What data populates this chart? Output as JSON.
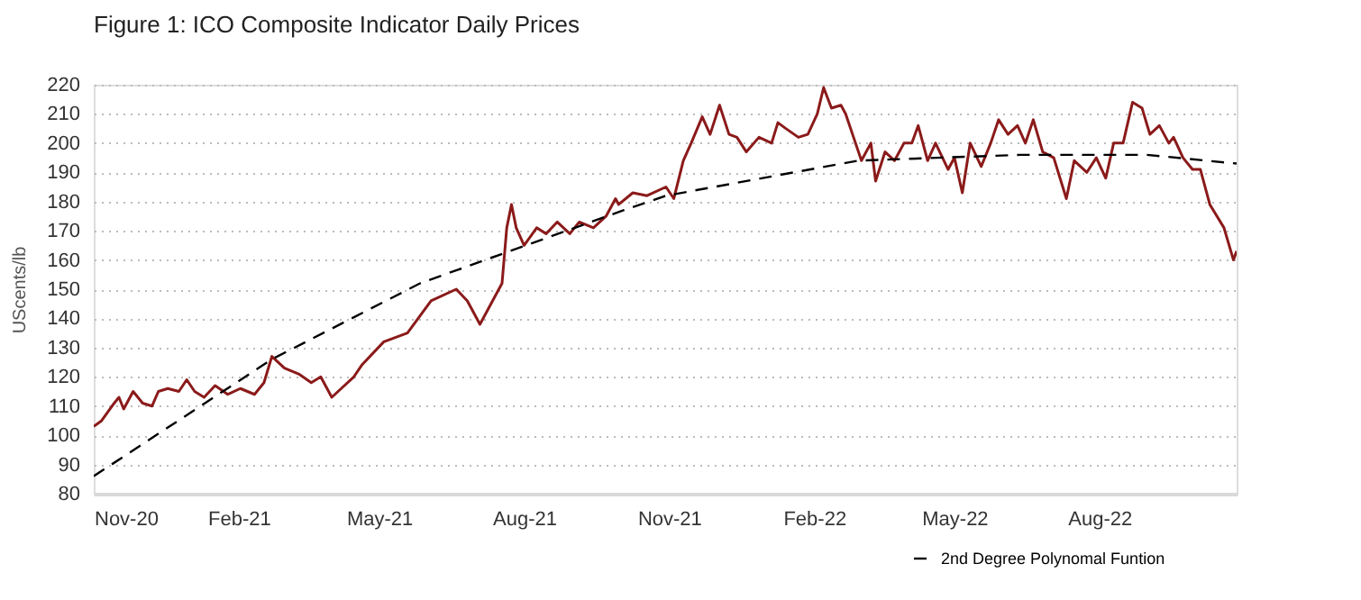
{
  "chart_data": {
    "type": "line",
    "title": "Figure 1: ICO Composite Indicator Daily Prices",
    "ylabel": "UScents/lb",
    "xlim": [
      "2020-11-01",
      "2022-10-27"
    ],
    "xticks": [
      {
        "value": "2020-11-01",
        "label": "Nov-20"
      },
      {
        "value": "2021-02-01",
        "label": "Feb-21"
      },
      {
        "value": "2021-05-01",
        "label": "May-21"
      },
      {
        "value": "2021-08-01",
        "label": "Aug-21"
      },
      {
        "value": "2021-11-01",
        "label": "Nov-21"
      },
      {
        "value": "2022-02-01",
        "label": "Feb-22"
      },
      {
        "value": "2022-05-01",
        "label": "May-22"
      },
      {
        "value": "2022-08-01",
        "label": "Aug-22"
      }
    ],
    "ylim": [
      80,
      220
    ],
    "yticks": [
      80,
      90,
      100,
      110,
      120,
      130,
      140,
      150,
      160,
      170,
      180,
      190,
      200,
      210,
      220
    ],
    "grid": "y",
    "legend": "bottom right",
    "series": [
      {
        "color": "#8b1a1a",
        "line_style": "solid",
        "x": [
          "2020-11-01",
          "2020-11-06",
          "2020-11-14",
          "2020-11-17",
          "2020-11-20",
          "2020-11-26",
          "2020-12-02",
          "2020-12-08",
          "2020-12-12",
          "2020-12-18",
          "2020-12-25",
          "2020-12-30",
          "2021-01-04",
          "2021-01-10",
          "2021-01-17",
          "2021-01-25",
          "2021-02-02",
          "2021-02-11",
          "2021-02-17",
          "2021-02-22",
          "2021-03-02",
          "2021-03-11",
          "2021-03-19",
          "2021-03-25",
          "2021-04-01",
          "2021-04-07",
          "2021-04-15",
          "2021-04-20",
          "2021-05-04",
          "2021-05-19",
          "2021-06-03",
          "2021-06-19",
          "2021-06-26",
          "2021-07-04",
          "2021-07-12",
          "2021-07-18",
          "2021-07-21",
          "2021-07-24",
          "2021-07-27",
          "2021-08-01",
          "2021-08-09",
          "2021-08-15",
          "2021-08-22",
          "2021-08-30",
          "2021-09-05",
          "2021-09-14",
          "2021-09-22",
          "2021-09-28",
          "2021-09-30",
          "2021-10-09",
          "2021-10-18",
          "2021-10-30",
          "2021-11-04",
          "2021-11-10",
          "2021-11-15",
          "2021-11-22",
          "2021-11-27",
          "2021-12-03",
          "2021-12-09",
          "2021-12-14",
          "2021-12-20",
          "2021-12-28",
          "2022-01-05",
          "2022-01-09",
          "2022-01-14",
          "2022-01-22",
          "2022-01-28",
          "2022-02-03",
          "2022-02-07",
          "2022-02-12",
          "2022-02-18",
          "2022-02-21",
          "2022-02-26",
          "2022-03-03",
          "2022-03-09",
          "2022-03-12",
          "2022-03-18",
          "2022-03-24",
          "2022-03-30",
          "2022-04-04",
          "2022-04-08",
          "2022-04-14",
          "2022-04-19",
          "2022-04-27",
          "2022-05-01",
          "2022-05-06",
          "2022-05-11",
          "2022-05-18",
          "2022-05-24",
          "2022-05-29",
          "2022-06-04",
          "2022-06-10",
          "2022-06-15",
          "2022-06-20",
          "2022-06-26",
          "2022-07-03",
          "2022-07-11",
          "2022-07-16",
          "2022-07-24",
          "2022-07-30",
          "2022-08-05",
          "2022-08-10",
          "2022-08-16",
          "2022-08-22",
          "2022-08-28",
          "2022-09-02",
          "2022-09-08",
          "2022-09-14",
          "2022-09-17",
          "2022-09-23",
          "2022-09-29",
          "2022-10-04",
          "2022-10-10",
          "2022-10-19",
          "2022-10-25",
          "2022-10-27"
        ],
        "values": [
          103,
          105,
          111,
          113,
          109,
          115,
          111,
          110,
          115,
          116,
          115,
          119,
          115,
          113,
          117,
          114,
          116,
          114,
          118,
          127,
          123,
          121,
          118,
          120,
          113,
          116,
          120,
          124,
          132,
          135,
          146,
          150,
          146,
          138,
          146,
          152,
          171,
          179,
          171,
          165,
          171,
          169,
          173,
          169,
          173,
          171,
          175,
          181,
          179,
          183,
          182,
          185,
          181,
          194,
          200,
          209,
          203,
          213,
          203,
          202,
          197,
          202,
          200,
          207,
          205,
          202,
          203,
          210,
          219,
          212,
          213,
          210,
          202,
          194,
          200,
          187,
          197,
          194,
          200,
          200,
          206,
          194,
          200,
          191,
          195,
          183,
          200,
          192,
          200,
          208,
          203,
          206,
          200,
          208,
          197,
          195,
          181,
          194,
          190,
          195,
          188,
          200,
          200,
          214,
          212,
          203,
          206,
          200,
          202,
          195,
          191,
          191,
          179,
          171,
          160,
          163
        ]
      },
      {
        "name": "2nd Degree Polynomal Funtion",
        "color": "#000000",
        "line_style": "dashed",
        "x": [
          "2020-11-01",
          "2021-02-22",
          "2021-05-27",
          "2021-10-03",
          "2021-10-30",
          "2022-03-01",
          "2022-06-12",
          "2022-08-31",
          "2022-10-27"
        ],
        "values": [
          86,
          126,
          152,
          177,
          182,
          194,
          196,
          196,
          193
        ]
      }
    ]
  }
}
